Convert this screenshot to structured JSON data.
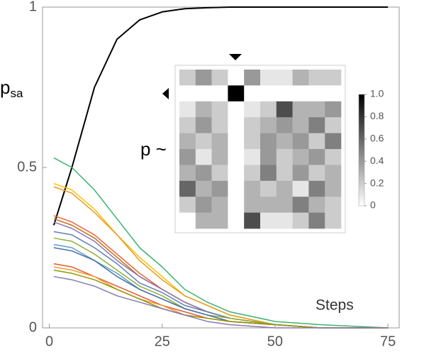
{
  "chart_data": [
    {
      "type": "line",
      "ylabel": "p",
      "ylabel_sub": "sa",
      "xlabel": "Steps",
      "xlim": [
        -1.5,
        77.5
      ],
      "ylim": [
        0,
        1
      ],
      "xticks": [
        0,
        25,
        50,
        75
      ],
      "yticks": [
        0,
        0.5,
        1
      ],
      "x": [
        1,
        5,
        10,
        15,
        20,
        25,
        30,
        35,
        40,
        50,
        60,
        75
      ],
      "series": [
        {
          "color": "#000000",
          "values": [
            0.32,
            0.5,
            0.75,
            0.9,
            0.96,
            0.985,
            0.995,
            0.998,
            1,
            1,
            1,
            1
          ]
        },
        {
          "color": "#3cb371",
          "values": [
            0.53,
            0.5,
            0.43,
            0.34,
            0.25,
            0.19,
            0.12,
            0.08,
            0.05,
            0.02,
            0.01,
            0
          ]
        },
        {
          "color": "#ffbf00",
          "values": [
            0.45,
            0.43,
            0.37,
            0.29,
            0.22,
            0.16,
            0.1,
            0.07,
            0.04,
            0.01,
            0,
            0
          ]
        },
        {
          "color": "#e19c24",
          "values": [
            0.44,
            0.42,
            0.36,
            0.29,
            0.21,
            0.15,
            0.1,
            0.07,
            0.04,
            0.01,
            0,
            0
          ]
        },
        {
          "color": "#eb6235",
          "values": [
            0.35,
            0.33,
            0.29,
            0.23,
            0.17,
            0.12,
            0.08,
            0.05,
            0.03,
            0.01,
            0,
            0
          ]
        },
        {
          "color": "#c56e1a",
          "values": [
            0.34,
            0.32,
            0.28,
            0.22,
            0.16,
            0.12,
            0.08,
            0.05,
            0.03,
            0.01,
            0,
            0
          ]
        },
        {
          "color": "#8778b3",
          "values": [
            0.33,
            0.31,
            0.27,
            0.21,
            0.16,
            0.12,
            0.08,
            0.05,
            0.03,
            0.01,
            0,
            0
          ]
        },
        {
          "color": "#5e81b5",
          "values": [
            0.3,
            0.29,
            0.25,
            0.2,
            0.14,
            0.11,
            0.07,
            0.05,
            0.03,
            0.01,
            0,
            0
          ]
        },
        {
          "color": "#8fb032",
          "values": [
            0.28,
            0.27,
            0.23,
            0.18,
            0.13,
            0.1,
            0.06,
            0.04,
            0.03,
            0.01,
            0,
            0
          ]
        },
        {
          "color": "#5d9ec7",
          "values": [
            0.26,
            0.25,
            0.21,
            0.17,
            0.12,
            0.09,
            0.06,
            0.04,
            0.02,
            0.01,
            0,
            0
          ]
        },
        {
          "color": "#4a6fa5",
          "values": [
            0.25,
            0.24,
            0.21,
            0.16,
            0.12,
            0.09,
            0.06,
            0.04,
            0.02,
            0.01,
            0,
            0
          ]
        },
        {
          "color": "#e95536",
          "values": [
            0.2,
            0.19,
            0.16,
            0.13,
            0.1,
            0.07,
            0.05,
            0.03,
            0.02,
            0.01,
            0,
            0
          ]
        },
        {
          "color": "#f0a030",
          "values": [
            0.19,
            0.18,
            0.16,
            0.12,
            0.09,
            0.07,
            0.04,
            0.03,
            0.02,
            0.01,
            0,
            0
          ]
        },
        {
          "color": "#929600",
          "values": [
            0.18,
            0.17,
            0.15,
            0.12,
            0.09,
            0.06,
            0.04,
            0.03,
            0.02,
            0.01,
            0,
            0
          ]
        },
        {
          "color": "#8778b3",
          "values": [
            0.16,
            0.15,
            0.13,
            0.1,
            0.08,
            0.06,
            0.04,
            0.02,
            0.01,
            0,
            0,
            0
          ]
        }
      ]
    },
    {
      "type": "heatmap",
      "label": "p ~",
      "clim": [
        0,
        1
      ],
      "cticks": [
        0,
        0.2,
        0.4,
        0.6,
        0.8,
        {
          "value": 1,
          "label": "1.0"
        }
      ],
      "matrix": [
        [
          0.2,
          0.4,
          0.2,
          0,
          0.4,
          0.1,
          0.1,
          0.3,
          0.2,
          0.2
        ],
        [
          0,
          0,
          0,
          1,
          0,
          0,
          0,
          0,
          0,
          0
        ],
        [
          0.1,
          0.3,
          0.2,
          0,
          0.1,
          0.2,
          0.7,
          0.3,
          0.3,
          0.4
        ],
        [
          0.2,
          0.4,
          0.2,
          0,
          0.2,
          0.3,
          0.4,
          0.3,
          0.5,
          0.2
        ],
        [
          0.3,
          0.2,
          0.3,
          0,
          0.2,
          0.4,
          0.3,
          0.4,
          0.2,
          0.5
        ],
        [
          0.4,
          0.1,
          0.3,
          0,
          0.1,
          0.4,
          0.2,
          0.3,
          0.4,
          0.2
        ],
        [
          0.3,
          0.4,
          0.2,
          0,
          0.2,
          0.5,
          0.2,
          0.4,
          0.2,
          0.3
        ],
        [
          0.6,
          0.3,
          0.4,
          0,
          0.3,
          0.2,
          0.3,
          0.1,
          0.5,
          0.3
        ],
        [
          0.2,
          0.4,
          0.3,
          0,
          0.3,
          0.3,
          0.3,
          0.5,
          0.3,
          0.2
        ],
        [
          0,
          0.3,
          0.3,
          0,
          0.7,
          0.1,
          0.1,
          0.2,
          0.5,
          0.2
        ]
      ]
    }
  ]
}
